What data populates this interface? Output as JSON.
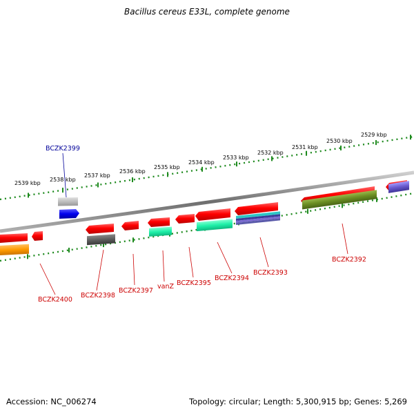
{
  "title": "Bacillus cereus E33L, complete genome",
  "footer": {
    "accession": "Accession: NC_006274",
    "summary": "Topology: circular; Length: 5,300,915 bp; Genes: 5,269"
  },
  "colors": {
    "backbone": "#8a8a8a",
    "tick_outer": "#1e8a1e",
    "tick_inner": "#1e8a1e",
    "label_red": "#cc0000",
    "label_blue": "#000099"
  },
  "scale_labels": [
    "2539 kbp",
    "2538 kbp",
    "2537 kbp",
    "2536 kbp",
    "2535 kbp",
    "2534 kbp",
    "2533 kbp",
    "2532 kbp",
    "2531 kbp",
    "2530 kbp",
    "2529 kbp"
  ],
  "gene_labels": {
    "bczk2399": "BCZK2399",
    "bczk2400": "BCZK2400",
    "bczk2398": "BCZK2398",
    "bczk2397": "BCZK2397",
    "vanz": "vanZ",
    "bczk2395": "BCZK2395",
    "bczk2394": "BCZK2394",
    "bczk2393": "BCZK2393",
    "bczk2392": "BCZK2392"
  }
}
